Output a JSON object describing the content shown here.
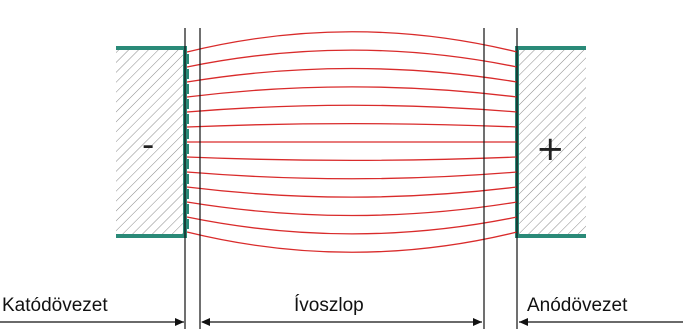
{
  "diagram": {
    "cathode_sign": "-",
    "anode_sign": "+",
    "labels": {
      "cathode_zone": "Katódövezet",
      "arc_column": "Ívoszlop",
      "anode_zone": "Anódövezet"
    },
    "colors": {
      "field_lines": "#d92b2b",
      "electrode_outline": "#2a8a78",
      "hatch": "#777777",
      "boundary": "#111111",
      "arrow": "#111111"
    },
    "field_line_count": 13
  }
}
